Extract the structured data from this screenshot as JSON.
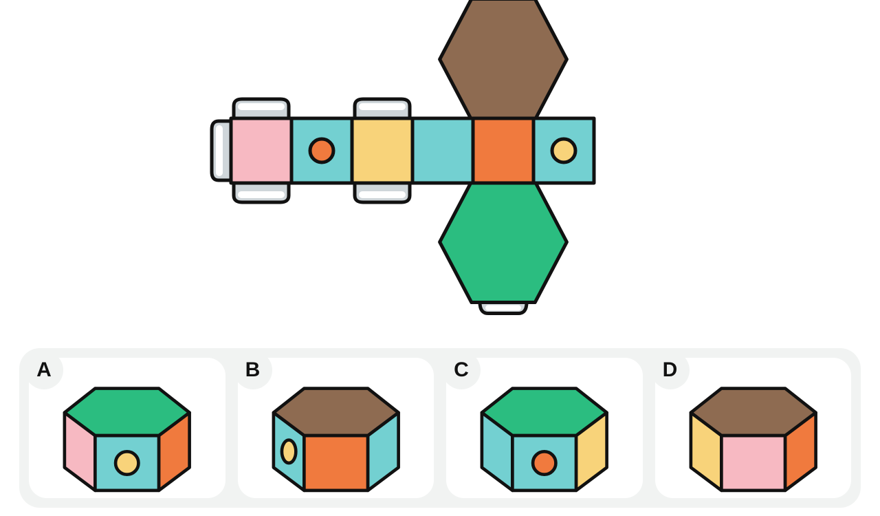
{
  "type": "spatial-reasoning-puzzle",
  "colors": {
    "stroke": "#111111",
    "cyan": "#73d0d1",
    "pink": "#f7b9c2",
    "yellow": "#f8d37a",
    "orange": "#f07a3e",
    "green": "#2bbd80",
    "brown": "#8e6b51",
    "tabGray": "#cfd6da",
    "panelGray": "#f1f3f2",
    "white": "#ffffff"
  },
  "strokeWidth": 5,
  "net": {
    "description": "Unfolded hexagonal prism net: horizontal strip of 6 rectangular side faces, with a brown hexagon attached above face 5 and a green hexagon attached below face 5. Glue tabs on top of face 1 and face 3, on left of face 1, and at far ends of both hexagons.",
    "stripTop": 172,
    "faceW": 88,
    "faceH": 94,
    "startX": 336,
    "faces": [
      {
        "fill": "pink",
        "circle": null
      },
      {
        "fill": "cyan",
        "circle": {
          "fill": "orange",
          "r": 17
        }
      },
      {
        "fill": "yellow",
        "circle": null
      },
      {
        "fill": "cyan",
        "circle": null
      },
      {
        "fill": "orange",
        "circle": null
      },
      {
        "fill": "cyan",
        "circle": {
          "fill": "yellow",
          "r": 17
        }
      }
    ],
    "hexTop": {
      "fill": "brown",
      "attachedToFaceIndex": 4
    },
    "hexBottom": {
      "fill": "green",
      "attachedToFaceIndex": 4
    }
  },
  "answers": [
    {
      "label": "A",
      "top": "green",
      "leftFace": {
        "fill": "pink",
        "circle": null
      },
      "centerFace": {
        "fill": "cyan",
        "circle": {
          "fill": "yellow"
        }
      },
      "rightFace": {
        "fill": "orange",
        "circle": null
      }
    },
    {
      "label": "B",
      "top": "brown",
      "leftFace": {
        "fill": "cyan",
        "circle": {
          "fill": "yellow"
        }
      },
      "centerFace": {
        "fill": "orange",
        "circle": null
      },
      "rightFace": {
        "fill": "cyan",
        "circle": null
      }
    },
    {
      "label": "C",
      "top": "green",
      "leftFace": {
        "fill": "cyan",
        "circle": null
      },
      "centerFace": {
        "fill": "cyan",
        "circle": {
          "fill": "orange"
        }
      },
      "rightFace": {
        "fill": "yellow",
        "circle": null
      }
    },
    {
      "label": "D",
      "top": "brown",
      "leftFace": {
        "fill": "yellow",
        "circle": null
      },
      "centerFace": {
        "fill": "pink",
        "circle": null
      },
      "rightFace": {
        "fill": "orange",
        "circle": null
      }
    }
  ]
}
